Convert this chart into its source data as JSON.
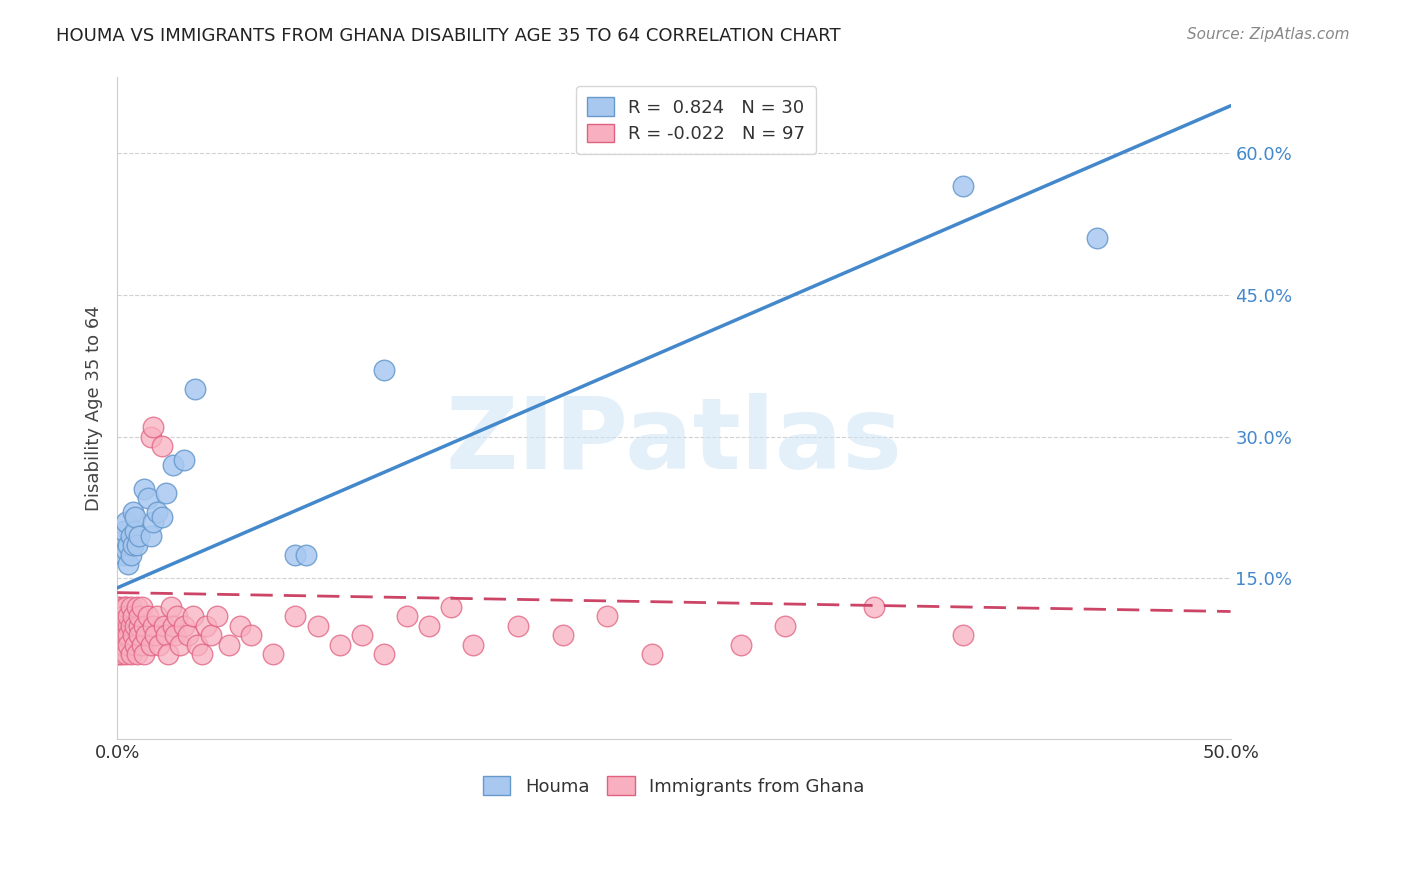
{
  "title": "HOUMA VS IMMIGRANTS FROM GHANA DISABILITY AGE 35 TO 64 CORRELATION CHART",
  "source": "Source: ZipAtlas.com",
  "ylabel": "Disability Age 35 to 64",
  "watermark": "ZIPatlas",
  "xlim": [
    0,
    0.5
  ],
  "ylim": [
    -0.02,
    0.68
  ],
  "xticks": [
    0.0,
    0.125,
    0.25,
    0.375,
    0.5
  ],
  "xtick_labels": [
    "0.0%",
    "",
    "",
    "",
    "50.0%"
  ],
  "yticks": [
    0.15,
    0.3,
    0.45,
    0.6
  ],
  "ytick_labels": [
    "15.0%",
    "30.0%",
    "45.0%",
    "60.0%"
  ],
  "houma_R": 0.824,
  "houma_N": 30,
  "ghana_R": -0.022,
  "ghana_N": 97,
  "houma_color": "#a8c8f0",
  "houma_edge_color": "#6699cc",
  "ghana_color": "#f8b0c0",
  "ghana_edge_color": "#e06080",
  "houma_line_color": "#4488cc",
  "ghana_line_color": "#cc4466",
  "houma_line_x": [
    0.0,
    0.5
  ],
  "houma_line_y": [
    0.14,
    0.65
  ],
  "ghana_line_x": [
    0.0,
    0.5
  ],
  "ghana_line_y": [
    0.135,
    0.115
  ],
  "houma_x": [
    0.002,
    0.003,
    0.003,
    0.004,
    0.004,
    0.005,
    0.005,
    0.006,
    0.006,
    0.007,
    0.007,
    0.008,
    0.008,
    0.009,
    0.01,
    0.012,
    0.014,
    0.015,
    0.016,
    0.018,
    0.02,
    0.022,
    0.025,
    0.03,
    0.035,
    0.08,
    0.085,
    0.12,
    0.38,
    0.44
  ],
  "houma_y": [
    0.19,
    0.175,
    0.2,
    0.21,
    0.18,
    0.165,
    0.185,
    0.195,
    0.175,
    0.185,
    0.22,
    0.2,
    0.215,
    0.185,
    0.195,
    0.245,
    0.235,
    0.195,
    0.21,
    0.22,
    0.215,
    0.24,
    0.27,
    0.275,
    0.35,
    0.175,
    0.175,
    0.37,
    0.565,
    0.51
  ],
  "ghana_x": [
    0.0,
    0.0,
    0.0,
    0.0,
    0.0,
    0.0,
    0.0,
    0.0,
    0.0,
    0.0,
    0.001,
    0.001,
    0.001,
    0.001,
    0.001,
    0.001,
    0.001,
    0.001,
    0.002,
    0.002,
    0.002,
    0.002,
    0.002,
    0.003,
    0.003,
    0.003,
    0.003,
    0.004,
    0.004,
    0.004,
    0.005,
    0.005,
    0.005,
    0.005,
    0.006,
    0.006,
    0.006,
    0.007,
    0.007,
    0.008,
    0.008,
    0.009,
    0.009,
    0.01,
    0.01,
    0.01,
    0.011,
    0.011,
    0.012,
    0.012,
    0.013,
    0.014,
    0.015,
    0.015,
    0.016,
    0.016,
    0.017,
    0.018,
    0.019,
    0.02,
    0.021,
    0.022,
    0.023,
    0.024,
    0.025,
    0.026,
    0.027,
    0.028,
    0.03,
    0.032,
    0.034,
    0.036,
    0.038,
    0.04,
    0.042,
    0.045,
    0.05,
    0.055,
    0.06,
    0.07,
    0.08,
    0.09,
    0.1,
    0.11,
    0.12,
    0.13,
    0.14,
    0.15,
    0.16,
    0.18,
    0.2,
    0.22,
    0.24,
    0.28,
    0.3,
    0.34,
    0.38
  ],
  "ghana_y": [
    0.1,
    0.09,
    0.11,
    0.08,
    0.1,
    0.07,
    0.12,
    0.09,
    0.11,
    0.08,
    0.1,
    0.09,
    0.11,
    0.08,
    0.12,
    0.1,
    0.07,
    0.09,
    0.11,
    0.08,
    0.1,
    0.09,
    0.07,
    0.12,
    0.1,
    0.08,
    0.11,
    0.09,
    0.07,
    0.12,
    0.1,
    0.09,
    0.11,
    0.08,
    0.1,
    0.07,
    0.12,
    0.11,
    0.09,
    0.1,
    0.08,
    0.12,
    0.07,
    0.1,
    0.09,
    0.11,
    0.08,
    0.12,
    0.1,
    0.07,
    0.09,
    0.11,
    0.08,
    0.3,
    0.31,
    0.1,
    0.09,
    0.11,
    0.08,
    0.29,
    0.1,
    0.09,
    0.07,
    0.12,
    0.1,
    0.09,
    0.11,
    0.08,
    0.1,
    0.09,
    0.11,
    0.08,
    0.07,
    0.1,
    0.09,
    0.11,
    0.08,
    0.1,
    0.09,
    0.07,
    0.11,
    0.1,
    0.08,
    0.09,
    0.07,
    0.11,
    0.1,
    0.12,
    0.08,
    0.1,
    0.09,
    0.11,
    0.07,
    0.08,
    0.1,
    0.12,
    0.09
  ]
}
